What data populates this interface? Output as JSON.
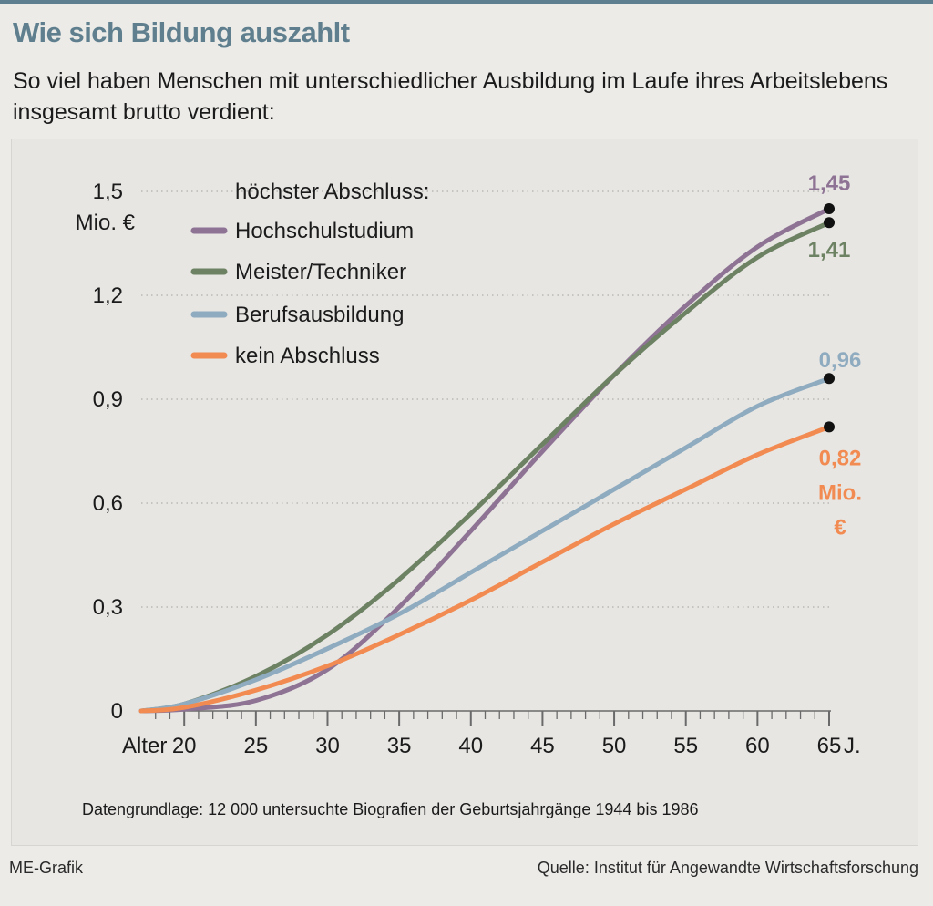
{
  "title": "Wie sich Bildung auszahlt",
  "subtitle": "So viel haben Menschen mit unterschiedlicher Ausbildung im Laufe ihres Arbeitslebens insgesamt brutto verdient:",
  "footnote": "Datengrundlage: 12 000 untersuchte Biografien der Geburtsjahrgänge 1944 bis 1986",
  "credit": "ME-Grafik",
  "source": "Quelle: Institut für Angewandte Wirtschaftsforschung",
  "chart_data": {
    "type": "line",
    "legend_title": "höchster Abschluss:",
    "legend_position": "top-left",
    "xlabel": "Alter",
    "x_unit": "J.",
    "y_unit": "Mio. €",
    "xlim": [
      17,
      65
    ],
    "ylim": [
      0,
      1.5
    ],
    "x_ticks": [
      20,
      25,
      30,
      35,
      40,
      45,
      50,
      55,
      60,
      65
    ],
    "y_ticks": [
      {
        "value": 0,
        "label": "0"
      },
      {
        "value": 0.3,
        "label": "0,3"
      },
      {
        "value": 0.6,
        "label": "0,6"
      },
      {
        "value": 0.9,
        "label": "0,9"
      },
      {
        "value": 1.2,
        "label": "1,2"
      },
      {
        "value": 1.5,
        "label": "1,5"
      }
    ],
    "grid": "horizontal dotted",
    "x": [
      17,
      20,
      25,
      30,
      35,
      40,
      45,
      50,
      55,
      60,
      65
    ],
    "series": [
      {
        "name": "Hochschulstudium",
        "color": "#8e7394",
        "values": [
          0,
          0.005,
          0.03,
          0.12,
          0.3,
          0.52,
          0.75,
          0.97,
          1.17,
          1.34,
          1.45
        ],
        "end_label": "1,45"
      },
      {
        "name": "Meister/Techniker",
        "color": "#6d8163",
        "values": [
          0,
          0.02,
          0.1,
          0.22,
          0.38,
          0.57,
          0.77,
          0.97,
          1.15,
          1.31,
          1.41
        ],
        "end_label": "1,41"
      },
      {
        "name": "Berufsausbildung",
        "color": "#8fabbf",
        "values": [
          0,
          0.02,
          0.09,
          0.18,
          0.28,
          0.4,
          0.52,
          0.64,
          0.76,
          0.88,
          0.96
        ],
        "end_label": "0,96"
      },
      {
        "name": "kein Abschluss",
        "color": "#f28b52",
        "values": [
          0,
          0.01,
          0.06,
          0.13,
          0.22,
          0.32,
          0.43,
          0.54,
          0.64,
          0.74,
          0.82
        ],
        "end_label": "0,82",
        "end_unit_1": "Mio.",
        "end_unit_2": "€"
      }
    ]
  }
}
